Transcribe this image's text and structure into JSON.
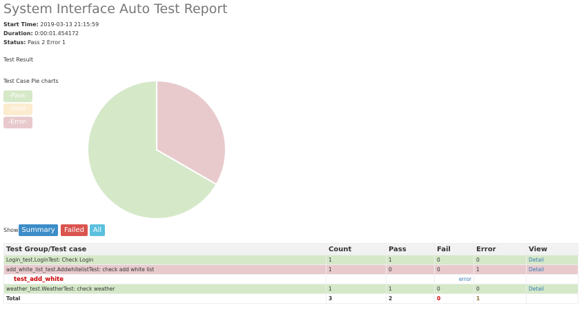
{
  "header": {
    "title": "System Interface Auto Test Report",
    "attributes": [
      {
        "label": "Start Time:",
        "value": "2019-03-13 21:15:59"
      },
      {
        "label": "Duration:",
        "value": "0:00:01.454172"
      },
      {
        "label": "Status:",
        "value": "Pass 2 Error 1"
      }
    ]
  },
  "result_heading": "Test Result",
  "chart_data": {
    "type": "pie",
    "title": "Test Case Pie charts",
    "categories": [
      "-Pass-",
      "-Faild-",
      "-Error-"
    ],
    "values": [
      2,
      0,
      1
    ],
    "colors": [
      "#d5e8c8",
      "#fcebcf",
      "#e8cacd"
    ]
  },
  "filter": {
    "label": "Show",
    "buttons": [
      "Summary",
      "Failed",
      "All"
    ]
  },
  "table": {
    "columns": [
      "Test Group/Test case",
      "Count",
      "Pass",
      "Fail",
      "Error",
      "View"
    ],
    "rows": [
      [
        "Login_test.LoginTest: Check Login",
        "1",
        "1",
        "0",
        "0",
        "Detail"
      ],
      [
        "add_white_list_test.AddwhitelistTest: check add white list",
        "1",
        "0",
        "0",
        "1",
        "Detail"
      ],
      [
        "test_add_white",
        "",
        "",
        "error",
        "",
        ""
      ],
      [
        "weather_test.WeatherTest: check weather",
        "1",
        "1",
        "0",
        "0",
        "Detail"
      ],
      [
        "Total",
        "3",
        "2",
        "0",
        "1",
        ""
      ]
    ]
  }
}
